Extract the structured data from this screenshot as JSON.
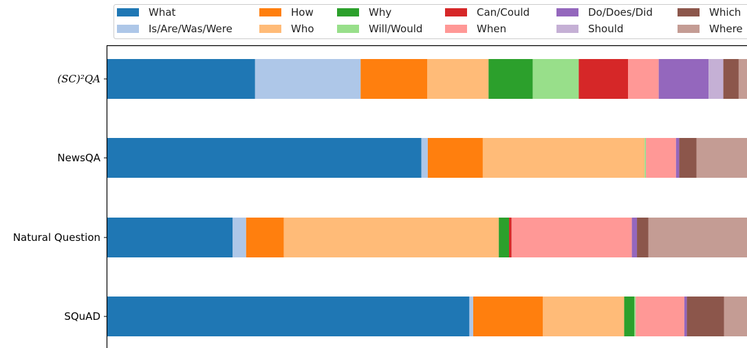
{
  "chart_data": {
    "type": "bar",
    "orientation": "horizontal",
    "stacked": true,
    "normalized": true,
    "categories": [
      "(SC)²QA",
      "NewsQA",
      "Natural Question",
      "SQuAD"
    ],
    "series": [
      {
        "name": "What",
        "color": "#1f77b4",
        "values": [
          0.231,
          0.491,
          0.196,
          0.566
        ]
      },
      {
        "name": "Is/Are/Was/Were",
        "color": "#aec7e8",
        "values": [
          0.165,
          0.01,
          0.021,
          0.006
        ]
      },
      {
        "name": "How",
        "color": "#ff7f0e",
        "values": [
          0.104,
          0.086,
          0.059,
          0.109
        ]
      },
      {
        "name": "Who",
        "color": "#ffbb78",
        "values": [
          0.096,
          0.253,
          0.336,
          0.127
        ]
      },
      {
        "name": "Why",
        "color": "#2ca02c",
        "values": [
          0.069,
          0.0,
          0.016,
          0.016
        ]
      },
      {
        "name": "Will/Would",
        "color": "#98df8a",
        "values": [
          0.072,
          0.002,
          0.0,
          0.002
        ]
      },
      {
        "name": "Can/Could",
        "color": "#d62728",
        "values": [
          0.077,
          0.0,
          0.004,
          0.0
        ]
      },
      {
        "name": "When",
        "color": "#ff9896",
        "values": [
          0.048,
          0.047,
          0.188,
          0.076
        ]
      },
      {
        "name": "Do/Does/Did",
        "color": "#9467bd",
        "values": [
          0.078,
          0.005,
          0.008,
          0.004
        ]
      },
      {
        "name": "Should",
        "color": "#c5b0d5",
        "values": [
          0.023,
          0.0,
          0.0,
          0.0
        ]
      },
      {
        "name": "Which",
        "color": "#8c564b",
        "values": [
          0.024,
          0.027,
          0.018,
          0.058
        ]
      },
      {
        "name": "Where",
        "color": "#c49c94",
        "values": [
          0.013,
          0.079,
          0.154,
          0.036
        ]
      }
    ],
    "xlim": [
      0,
      1
    ],
    "legend": "top",
    "grid": false
  }
}
